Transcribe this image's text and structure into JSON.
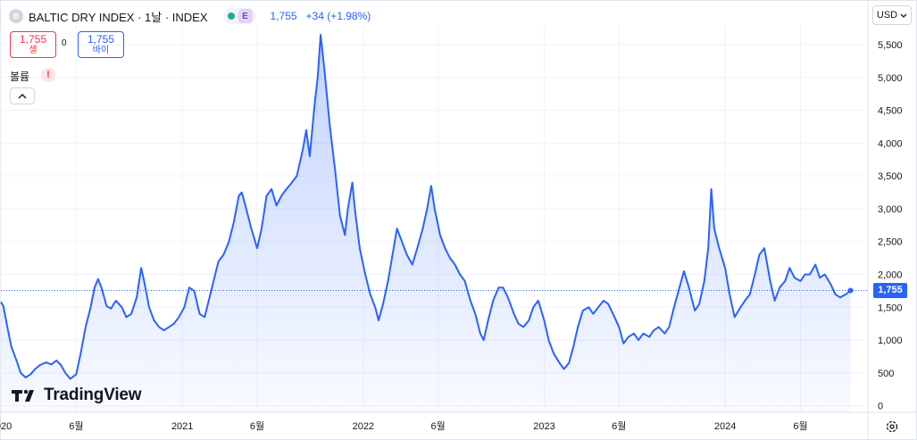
{
  "header": {
    "logo_letter": "B",
    "title": "BALTIC DRY INDEX · 1날 · INDEX",
    "badge": "E",
    "last_value": "1,755",
    "change": "+34 (+1.98%)"
  },
  "trade": {
    "sell_value": "1,755",
    "sell_label": "셀",
    "spread": "0",
    "buy_value": "1,755",
    "buy_label": "바이"
  },
  "volume": {
    "label": "볼륨",
    "warning": "!"
  },
  "currency": {
    "label": "USD"
  },
  "brand": {
    "name": "TradingView"
  },
  "colors": {
    "line": "#2962ff",
    "sell": "#f23645",
    "buy": "#2962ff",
    "grid": "#f0f3fa"
  },
  "icons": {
    "collapse": "chevron-up-icon",
    "currency_dropdown": "chevron-down-icon",
    "settings": "gear-icon",
    "brand": "tradingview-logo-icon",
    "warning": "exclamation-icon"
  },
  "chart_data": {
    "type": "area",
    "title": "BALTIC DRY INDEX · 1날 · INDEX",
    "xlabel": "",
    "ylabel": "",
    "ylim": [
      -100,
      5800
    ],
    "y_ticks": [
      0,
      500,
      1000,
      1500,
      2000,
      2500,
      3000,
      3500,
      4000,
      4500,
      5000,
      5500
    ],
    "y_tick_labels": [
      "0",
      "500",
      "1,000",
      "1,500",
      "2,000",
      "2,500",
      "3,000",
      "3,500",
      "4,000",
      "4,500",
      "5,000",
      "5,500"
    ],
    "x_ticks": [
      "2020-01-01",
      "2020-06-01",
      "2021-01-01",
      "2021-06-01",
      "2022-01-01",
      "2022-06-01",
      "2023-01-01",
      "2023-06-01",
      "2024-01-01",
      "2024-06-01"
    ],
    "x_tick_labels": [
      "2020",
      "6월",
      "2021",
      "6월",
      "2022",
      "6월",
      "2023",
      "6월",
      "2024",
      "6월"
    ],
    "x_range": [
      "2020-01-01",
      "2024-10-15"
    ],
    "last_price": 1755,
    "last_price_label": "1,755",
    "grid": true,
    "series": [
      {
        "values": [
          [
            "2020-01-01",
            1580
          ],
          [
            "2020-01-06",
            1520
          ],
          [
            "2020-01-14",
            1200
          ],
          [
            "2020-01-22",
            900
          ],
          [
            "2020-02-01",
            700
          ],
          [
            "2020-02-10",
            500
          ],
          [
            "2020-02-20",
            430
          ],
          [
            "2020-03-01",
            480
          ],
          [
            "2020-03-10",
            560
          ],
          [
            "2020-03-20",
            620
          ],
          [
            "2020-04-01",
            660
          ],
          [
            "2020-04-12",
            630
          ],
          [
            "2020-04-22",
            690
          ],
          [
            "2020-05-01",
            620
          ],
          [
            "2020-05-10",
            500
          ],
          [
            "2020-05-20",
            410
          ],
          [
            "2020-06-01",
            480
          ],
          [
            "2020-06-10",
            800
          ],
          [
            "2020-06-20",
            1200
          ],
          [
            "2020-06-30",
            1500
          ],
          [
            "2020-07-08",
            1800
          ],
          [
            "2020-07-15",
            1930
          ],
          [
            "2020-07-22",
            1800
          ],
          [
            "2020-08-01",
            1520
          ],
          [
            "2020-08-10",
            1480
          ],
          [
            "2020-08-20",
            1600
          ],
          [
            "2020-09-01",
            1500
          ],
          [
            "2020-09-10",
            1350
          ],
          [
            "2020-09-20",
            1400
          ],
          [
            "2020-10-01",
            1650
          ],
          [
            "2020-10-10",
            2100
          ],
          [
            "2020-10-16",
            1900
          ],
          [
            "2020-10-26",
            1500
          ],
          [
            "2020-11-05",
            1300
          ],
          [
            "2020-11-15",
            1200
          ],
          [
            "2020-11-25",
            1150
          ],
          [
            "2020-12-05",
            1200
          ],
          [
            "2020-12-15",
            1250
          ],
          [
            "2020-12-25",
            1350
          ],
          [
            "2021-01-05",
            1500
          ],
          [
            "2021-01-15",
            1800
          ],
          [
            "2021-01-25",
            1750
          ],
          [
            "2021-02-05",
            1400
          ],
          [
            "2021-02-15",
            1350
          ],
          [
            "2021-02-25",
            1650
          ],
          [
            "2021-03-05",
            1900
          ],
          [
            "2021-03-15",
            2200
          ],
          [
            "2021-03-25",
            2300
          ],
          [
            "2021-04-05",
            2500
          ],
          [
            "2021-04-15",
            2800
          ],
          [
            "2021-04-25",
            3200
          ],
          [
            "2021-05-01",
            3250
          ],
          [
            "2021-05-10",
            3000
          ],
          [
            "2021-05-20",
            2700
          ],
          [
            "2021-06-01",
            2400
          ],
          [
            "2021-06-10",
            2700
          ],
          [
            "2021-06-20",
            3200
          ],
          [
            "2021-06-30",
            3300
          ],
          [
            "2021-07-10",
            3050
          ],
          [
            "2021-07-20",
            3200
          ],
          [
            "2021-07-30",
            3300
          ],
          [
            "2021-08-10",
            3400
          ],
          [
            "2021-08-20",
            3500
          ],
          [
            "2021-09-01",
            3900
          ],
          [
            "2021-09-08",
            4200
          ],
          [
            "2021-09-15",
            3800
          ],
          [
            "2021-09-25",
            4600
          ],
          [
            "2021-10-01",
            5000
          ],
          [
            "2021-10-07",
            5650
          ],
          [
            "2021-10-15",
            5100
          ],
          [
            "2021-10-25",
            4300
          ],
          [
            "2021-11-05",
            3600
          ],
          [
            "2021-11-15",
            2900
          ],
          [
            "2021-11-25",
            2600
          ],
          [
            "2021-12-01",
            3000
          ],
          [
            "2021-12-10",
            3400
          ],
          [
            "2021-12-15",
            3000
          ],
          [
            "2021-12-25",
            2400
          ],
          [
            "2022-01-05",
            2000
          ],
          [
            "2022-01-15",
            1700
          ],
          [
            "2022-01-25",
            1500
          ],
          [
            "2022-02-01",
            1300
          ],
          [
            "2022-02-10",
            1550
          ],
          [
            "2022-02-20",
            1900
          ],
          [
            "2022-03-01",
            2300
          ],
          [
            "2022-03-10",
            2700
          ],
          [
            "2022-03-20",
            2500
          ],
          [
            "2022-03-30",
            2300
          ],
          [
            "2022-04-10",
            2150
          ],
          [
            "2022-04-20",
            2400
          ],
          [
            "2022-05-01",
            2700
          ],
          [
            "2022-05-10",
            3000
          ],
          [
            "2022-05-18",
            3350
          ],
          [
            "2022-05-25",
            3000
          ],
          [
            "2022-06-05",
            2600
          ],
          [
            "2022-06-15",
            2400
          ],
          [
            "2022-06-25",
            2250
          ],
          [
            "2022-07-05",
            2150
          ],
          [
            "2022-07-15",
            2000
          ],
          [
            "2022-07-25",
            1900
          ],
          [
            "2022-08-05",
            1600
          ],
          [
            "2022-08-15",
            1400
          ],
          [
            "2022-08-25",
            1100
          ],
          [
            "2022-09-01",
            1000
          ],
          [
            "2022-09-10",
            1300
          ],
          [
            "2022-09-20",
            1600
          ],
          [
            "2022-10-01",
            1800
          ],
          [
            "2022-10-10",
            1800
          ],
          [
            "2022-10-20",
            1650
          ],
          [
            "2022-11-01",
            1400
          ],
          [
            "2022-11-10",
            1250
          ],
          [
            "2022-11-20",
            1200
          ],
          [
            "2022-12-01",
            1300
          ],
          [
            "2022-12-10",
            1500
          ],
          [
            "2022-12-20",
            1600
          ],
          [
            "2023-01-01",
            1300
          ],
          [
            "2023-01-10",
            1000
          ],
          [
            "2023-01-20",
            800
          ],
          [
            "2023-02-01",
            650
          ],
          [
            "2023-02-10",
            560
          ],
          [
            "2023-02-20",
            650
          ],
          [
            "2023-03-01",
            900
          ],
          [
            "2023-03-10",
            1200
          ],
          [
            "2023-03-20",
            1450
          ],
          [
            "2023-04-01",
            1500
          ],
          [
            "2023-04-10",
            1400
          ],
          [
            "2023-04-20",
            1500
          ],
          [
            "2023-05-01",
            1600
          ],
          [
            "2023-05-10",
            1550
          ],
          [
            "2023-05-20",
            1400
          ],
          [
            "2023-06-01",
            1200
          ],
          [
            "2023-06-10",
            950
          ],
          [
            "2023-06-20",
            1050
          ],
          [
            "2023-07-01",
            1100
          ],
          [
            "2023-07-10",
            1000
          ],
          [
            "2023-07-20",
            1100
          ],
          [
            "2023-08-01",
            1050
          ],
          [
            "2023-08-10",
            1150
          ],
          [
            "2023-08-20",
            1200
          ],
          [
            "2023-09-01",
            1100
          ],
          [
            "2023-09-10",
            1200
          ],
          [
            "2023-09-20",
            1500
          ],
          [
            "2023-10-01",
            1800
          ],
          [
            "2023-10-10",
            2050
          ],
          [
            "2023-10-20",
            1800
          ],
          [
            "2023-11-01",
            1450
          ],
          [
            "2023-11-10",
            1550
          ],
          [
            "2023-11-20",
            1900
          ],
          [
            "2023-11-28",
            2400
          ],
          [
            "2023-12-04",
            3300
          ],
          [
            "2023-12-10",
            2700
          ],
          [
            "2023-12-20",
            2400
          ],
          [
            "2024-01-01",
            2100
          ],
          [
            "2024-01-10",
            1700
          ],
          [
            "2024-01-20",
            1350
          ],
          [
            "2024-02-01",
            1500
          ],
          [
            "2024-02-10",
            1600
          ],
          [
            "2024-02-20",
            1700
          ],
          [
            "2024-03-01",
            2000
          ],
          [
            "2024-03-10",
            2300
          ],
          [
            "2024-03-20",
            2400
          ],
          [
            "2024-04-01",
            1900
          ],
          [
            "2024-04-10",
            1600
          ],
          [
            "2024-04-20",
            1800
          ],
          [
            "2024-05-01",
            1900
          ],
          [
            "2024-05-10",
            2100
          ],
          [
            "2024-05-20",
            1950
          ],
          [
            "2024-06-01",
            1900
          ],
          [
            "2024-06-10",
            2000
          ],
          [
            "2024-06-20",
            2000
          ],
          [
            "2024-07-01",
            2150
          ],
          [
            "2024-07-10",
            1950
          ],
          [
            "2024-07-20",
            2000
          ],
          [
            "2024-08-01",
            1850
          ],
          [
            "2024-08-10",
            1700
          ],
          [
            "2024-08-20",
            1650
          ],
          [
            "2024-09-01",
            1700
          ],
          [
            "2024-09-10",
            1755
          ]
        ]
      }
    ]
  }
}
